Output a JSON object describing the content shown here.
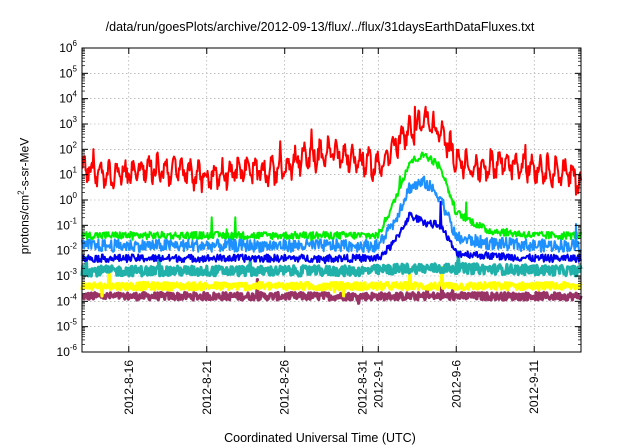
{
  "chart_data": {
    "type": "line",
    "title": "/data/run/goesPlots/archive/2012-09-13/flux/../flux/31daysEarthDataFluxes.txt",
    "xlabel": "Coordinated Universal Time (UTC)",
    "ylabel_parts": {
      "pre": "protons/cm",
      "sup": "2",
      "post": "-s-sr-MeV"
    },
    "yscale": "log",
    "ylim_exp": [
      -6,
      6
    ],
    "ytick_exponents": [
      -6,
      -5,
      -4,
      -3,
      -2,
      -1,
      0,
      1,
      2,
      3,
      4,
      5,
      6
    ],
    "ytick_base": "10",
    "xlim": [
      "2012-08-13",
      "2012-09-14"
    ],
    "xtick_labels": [
      "2012-8-16",
      "2012-8-21",
      "2012-8-26",
      "2012-8-31",
      "2012-9-1",
      "2012-9-6",
      "2012-9-11"
    ],
    "xtick_dates": [
      "2012-08-16",
      "2012-08-21",
      "2012-08-26",
      "2012-08-31",
      "2012-09-01",
      "2012-09-06",
      "2012-09-11"
    ],
    "grid": true,
    "series": [
      {
        "color": "#ff0000",
        "dates": [
          "2012-08-13",
          "2012-08-15",
          "2012-08-17",
          "2012-08-19",
          "2012-08-21",
          "2012-08-23",
          "2012-08-25",
          "2012-08-27",
          "2012-08-29",
          "2012-08-31",
          "2012-09-01",
          "2012-09-02",
          "2012-09-03",
          "2012-09-04",
          "2012-09-05",
          "2012-09-06",
          "2012-09-07",
          "2012-09-09",
          "2012-09-11",
          "2012-09-13",
          "2012-09-14"
        ],
        "log_values": [
          1.3,
          1.0,
          1.2,
          1.2,
          0.9,
          1.2,
          1.1,
          1.6,
          1.9,
          1.5,
          1.3,
          2.1,
          2.7,
          3.2,
          2.6,
          1.7,
          1.2,
          1.5,
          1.3,
          1.1,
          0.7
        ],
        "jitter": 0.35
      },
      {
        "color": "#00ee00",
        "dates": [
          "2012-08-13",
          "2012-08-20",
          "2012-08-27",
          "2012-09-01",
          "2012-09-02",
          "2012-09-03",
          "2012-09-04",
          "2012-09-05",
          "2012-09-06",
          "2012-09-08",
          "2012-09-11",
          "2012-09-14"
        ],
        "log_values": [
          -1.4,
          -1.4,
          -1.4,
          -1.4,
          -0.1,
          1.5,
          1.8,
          1.3,
          -0.5,
          -1.2,
          -1.4,
          -1.4
        ],
        "jitter": 0.15
      },
      {
        "color": "#1e90ff",
        "dates": [
          "2012-08-13",
          "2012-08-20",
          "2012-08-27",
          "2012-09-01",
          "2012-09-02",
          "2012-09-03",
          "2012-09-04",
          "2012-09-05",
          "2012-09-06",
          "2012-09-08",
          "2012-09-11",
          "2012-09-14"
        ],
        "log_values": [
          -1.8,
          -1.8,
          -1.8,
          -1.8,
          -0.9,
          0.5,
          0.7,
          0.1,
          -1.5,
          -1.7,
          -1.8,
          -1.8
        ],
        "jitter": 0.25
      },
      {
        "color": "#0000ee",
        "dates": [
          "2012-08-13",
          "2012-08-20",
          "2012-08-27",
          "2012-09-01",
          "2012-09-02",
          "2012-09-03",
          "2012-09-04",
          "2012-09-05",
          "2012-09-06",
          "2012-09-08",
          "2012-09-11",
          "2012-09-14"
        ],
        "log_values": [
          -2.3,
          -2.3,
          -2.3,
          -2.3,
          -1.7,
          -0.6,
          -0.9,
          -1.0,
          -2.1,
          -2.2,
          -2.3,
          -2.3
        ],
        "jitter": 0.15
      },
      {
        "color": "#20b2aa",
        "dates": [
          "2012-08-13",
          "2012-08-31",
          "2012-09-03",
          "2012-09-06",
          "2012-09-14"
        ],
        "log_values": [
          -2.8,
          -2.8,
          -2.7,
          -2.7,
          -2.8
        ],
        "jitter": 0.2
      },
      {
        "color": "#ffff00",
        "dates": [
          "2012-08-13",
          "2012-09-14"
        ],
        "log_values": [
          -3.4,
          -3.4
        ],
        "jitter": 0.15
      },
      {
        "color": "#993366",
        "dates": [
          "2012-08-13",
          "2012-09-14"
        ],
        "log_values": [
          -3.8,
          -3.8
        ],
        "jitter": 0.15
      }
    ]
  }
}
